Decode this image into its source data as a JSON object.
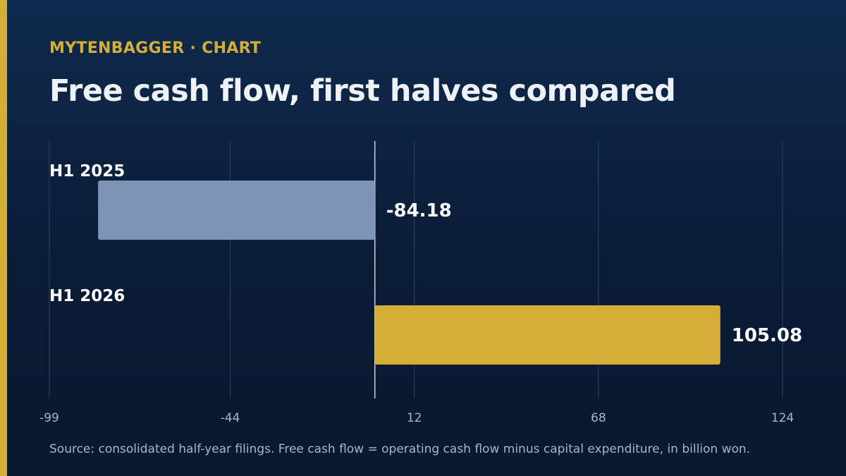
{
  "header": {
    "brand": "MYTENBAGGER",
    "separator": "·",
    "kicker_label": "CHART",
    "title": "Free cash flow, first halves compared"
  },
  "footer": {
    "source": "Source: consolidated half-year filings. Free cash flow = operating cash flow minus capital expenditure, in billion won."
  },
  "colors": {
    "accent": "#d4ae37",
    "negative_bar": "#7e94b6",
    "positive_bar": "#d4ae37",
    "gridline": "#2c4466",
    "zero_line": "#c8d2e0",
    "tick_text": "#a7b6cc"
  },
  "chart_data": {
    "type": "bar",
    "orientation": "horizontal",
    "categories": [
      "H1 2025",
      "H1 2026"
    ],
    "values": [
      -84.18,
      105.08
    ],
    "value_labels": [
      "-84.18",
      "105.08"
    ],
    "xlim": [
      -99,
      124
    ],
    "xticks": [
      -99,
      -44,
      12,
      68,
      124
    ],
    "xtick_labels": [
      "-99",
      "-44",
      "12",
      "68",
      "124"
    ],
    "grid": true,
    "legend": "none"
  }
}
